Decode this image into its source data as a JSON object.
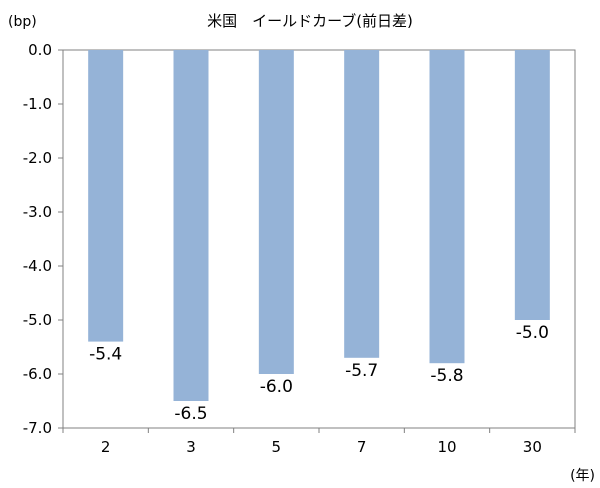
{
  "chart_data": {
    "type": "bar",
    "title": "米国　イールドカーブ(前日差)",
    "ylabel": "(bp)",
    "xlabel": "(年)",
    "categories": [
      "2",
      "3",
      "5",
      "7",
      "10",
      "30"
    ],
    "values": [
      -5.4,
      -6.5,
      -6.0,
      -5.7,
      -5.8,
      -5.0
    ],
    "data_labels": [
      "-5.4",
      "-6.5",
      "-6.0",
      "-5.7",
      "-5.8",
      "-5.0"
    ],
    "yticks": [
      "0.0",
      "-1.0",
      "-2.0",
      "-3.0",
      "-4.0",
      "-5.0",
      "-6.0",
      "-7.0"
    ],
    "ylim": [
      -7.0,
      0.0
    ],
    "bar_color": "#95b3d7",
    "grid": false,
    "legend": "none"
  }
}
